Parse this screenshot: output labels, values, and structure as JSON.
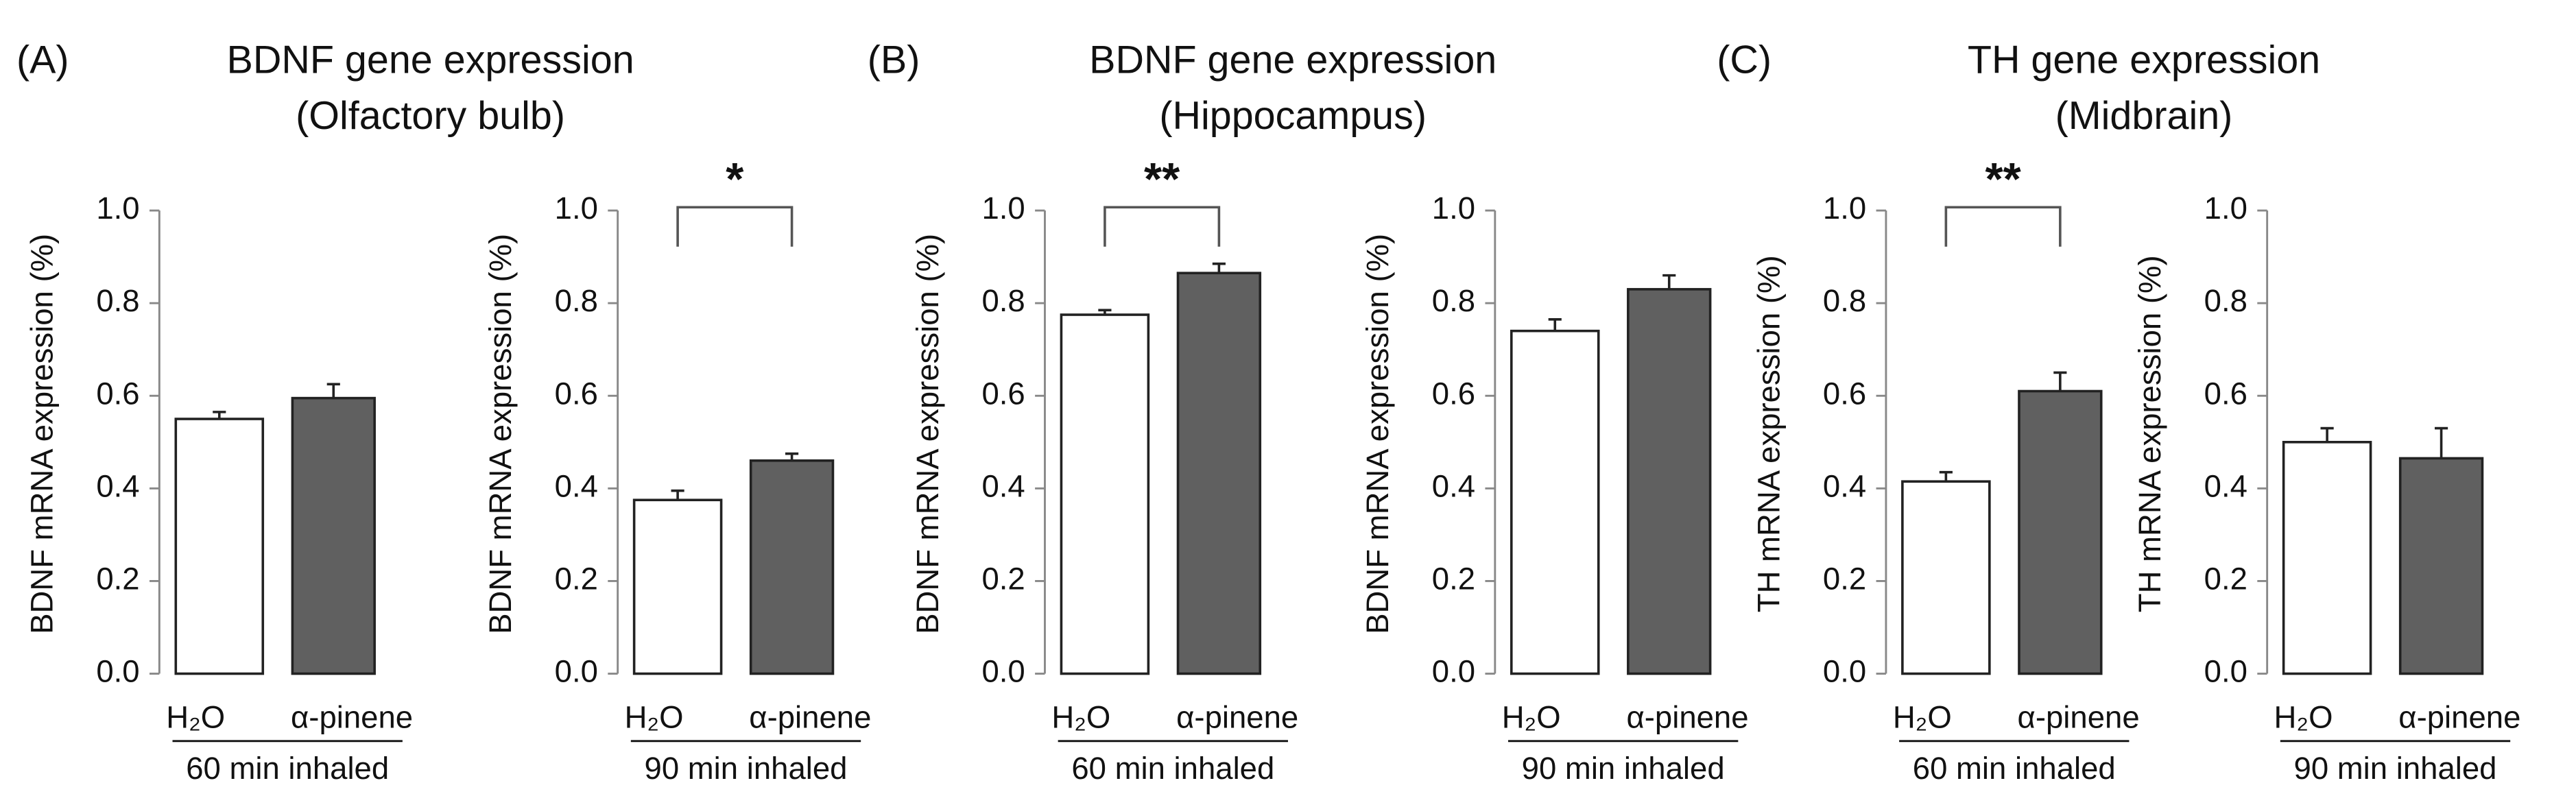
{
  "panels": [
    {
      "label": "(A)",
      "title": "BDNF gene expression",
      "subtitle": "(Olfactory bulb)"
    },
    {
      "label": "(B)",
      "title": "BDNF gene expression",
      "subtitle": "(Hippocampus)"
    },
    {
      "label": "(C)",
      "title": "TH gene expression",
      "subtitle": "(Midbrain)"
    }
  ],
  "chart_data": [
    {
      "type": "bar",
      "ylabel": "BDNF mRNA expression (%)",
      "xlabel": "60 min inhaled",
      "categories": [
        "H₂O",
        "α-pinene"
      ],
      "values": [
        0.55,
        0.595
      ],
      "errors": [
        0.015,
        0.03
      ],
      "colors": [
        "#ffffff",
        "#606060"
      ],
      "ylim": [
        0,
        1
      ],
      "yticks": [
        {
          "value": 0,
          "label": "0.0"
        },
        {
          "value": 0.2,
          "label": "0.2"
        },
        {
          "value": 0.4,
          "label": "0.4"
        },
        {
          "value": 0.6,
          "label": "0.6"
        },
        {
          "value": 0.8,
          "label": "0.8"
        },
        {
          "value": 1,
          "label": "1.0"
        }
      ]
    },
    {
      "type": "bar",
      "ylabel": "BDNF mRNA expression (%)",
      "xlabel": "90 min inhaled",
      "categories": [
        "H₂O",
        "α-pinene"
      ],
      "values": [
        0.375,
        0.46
      ],
      "errors": [
        0.02,
        0.015
      ],
      "colors": [
        "#ffffff",
        "#606060"
      ],
      "significance": "*",
      "ylim": [
        0,
        1
      ],
      "yticks": [
        {
          "value": 0,
          "label": "0.0"
        },
        {
          "value": 0.2,
          "label": "0.2"
        },
        {
          "value": 0.4,
          "label": "0.4"
        },
        {
          "value": 0.6,
          "label": "0.6"
        },
        {
          "value": 0.8,
          "label": "0.8"
        },
        {
          "value": 1,
          "label": "1.0"
        }
      ]
    },
    {
      "type": "bar",
      "ylabel": "BDNF mRNA expression (%)",
      "xlabel": "60 min inhaled",
      "categories": [
        "H₂O",
        "α-pinene"
      ],
      "values": [
        0.775,
        0.865
      ],
      "errors": [
        0.01,
        0.02
      ],
      "colors": [
        "#ffffff",
        "#606060"
      ],
      "significance": "**",
      "ylim": [
        0,
        1
      ],
      "yticks": [
        {
          "value": 0,
          "label": "0.0"
        },
        {
          "value": 0.2,
          "label": "0.2"
        },
        {
          "value": 0.4,
          "label": "0.4"
        },
        {
          "value": 0.6,
          "label": "0.6"
        },
        {
          "value": 0.8,
          "label": "0.8"
        },
        {
          "value": 1,
          "label": "1.0"
        }
      ]
    },
    {
      "type": "bar",
      "ylabel": "BDNF mRNA expression (%)",
      "xlabel": "90 min inhaled",
      "categories": [
        "H₂O",
        "α-pinene"
      ],
      "values": [
        0.74,
        0.83
      ],
      "errors": [
        0.025,
        0.03
      ],
      "colors": [
        "#ffffff",
        "#606060"
      ],
      "ylim": [
        0,
        1
      ],
      "yticks": [
        {
          "value": 0,
          "label": "0.0"
        },
        {
          "value": 0.2,
          "label": "0.2"
        },
        {
          "value": 0.4,
          "label": "0.4"
        },
        {
          "value": 0.6,
          "label": "0.6"
        },
        {
          "value": 0.8,
          "label": "0.8"
        },
        {
          "value": 1,
          "label": "1.0"
        }
      ]
    },
    {
      "type": "bar",
      "ylabel": "TH mRNA expression (%)",
      "xlabel": "60 min inhaled",
      "categories": [
        "H₂O",
        "α-pinene"
      ],
      "values": [
        0.415,
        0.61
      ],
      "errors": [
        0.02,
        0.04
      ],
      "colors": [
        "#ffffff",
        "#606060"
      ],
      "significance": "**",
      "ylim": [
        0,
        1
      ],
      "yticks": [
        {
          "value": 0,
          "label": "0.0"
        },
        {
          "value": 0.2,
          "label": "0.2"
        },
        {
          "value": 0.4,
          "label": "0.4"
        },
        {
          "value": 0.6,
          "label": "0.6"
        },
        {
          "value": 0.8,
          "label": "0.8"
        },
        {
          "value": 1,
          "label": "1.0"
        }
      ]
    },
    {
      "type": "bar",
      "ylabel": "TH mRNA expression (%)",
      "xlabel": "90 min inhaled",
      "categories": [
        "H₂O",
        "α-pinene"
      ],
      "values": [
        0.5,
        0.465
      ],
      "errors": [
        0.03,
        0.065
      ],
      "colors": [
        "#ffffff",
        "#606060"
      ],
      "ylim": [
        0,
        1
      ],
      "yticks": [
        {
          "value": 0,
          "label": "0.0"
        },
        {
          "value": 0.2,
          "label": "0.2"
        },
        {
          "value": 0.4,
          "label": "0.4"
        },
        {
          "value": 0.6,
          "label": "0.6"
        },
        {
          "value": 0.8,
          "label": "0.8"
        },
        {
          "value": 1,
          "label": "1.0"
        }
      ]
    }
  ]
}
